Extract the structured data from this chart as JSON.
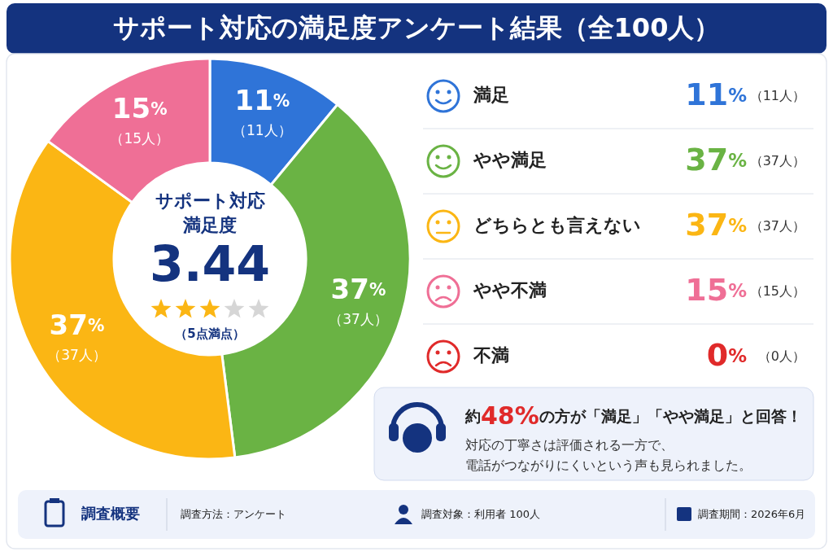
{
  "chart_data": {
    "type": "donut",
    "title": "サポート対応の満足度アンケート結果（全100人）",
    "categories": [
      "満足",
      "やや満足",
      "どちらとも言えない",
      "やや不満",
      "不満"
    ],
    "values": [
      11,
      37,
      37,
      15,
      0
    ],
    "colors": [
      "#2f74d8",
      "#6ab344",
      "#fbb614",
      "#ef6f96",
      "#e02a2a"
    ],
    "value_labels": [
      "11%\n（11人）",
      "37%\n（37人）",
      "37%\n（37人）",
      "15%\n（15人）",
      "0%\n（0人）"
    ],
    "legend": "right",
    "annotations": [
      "サポート対応",
      "満足度",
      "3.44",
      "（5点満点）",
      "約48%の方が「満足」「やや満足」と回答！",
      "対応の丁寧さは評価される一方で、",
      "電話がつながりにくいという声も見られました。",
      "調査概要",
      "調査方法：アンケート",
      "調査対象：利用者 100人",
      "調査期間：2026年6月"
    ]
  }
}
